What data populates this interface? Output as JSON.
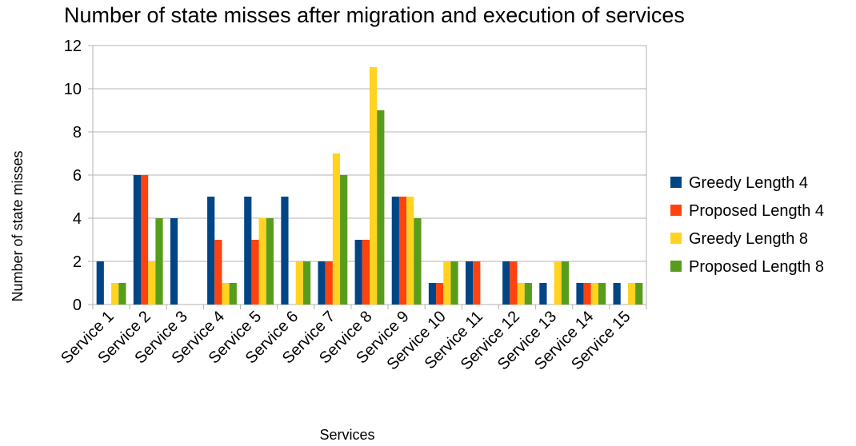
{
  "chart_data": {
    "type": "bar",
    "title": "Number of state misses after migration and execution of services",
    "xlabel": "Services",
    "ylabel": "Number of state misses",
    "ylim": [
      0,
      12
    ],
    "yticks": [
      0,
      2,
      4,
      6,
      8,
      10,
      12
    ],
    "grid": true,
    "legend_position": "right",
    "categories": [
      "Service 1",
      "Service 2",
      "Service 3",
      "Service 4",
      "Service 5",
      "Service 6",
      "Service 7",
      "Service 8",
      "Service 9",
      "Service 10",
      "Service 11",
      "Service 12",
      "Service 13",
      "Service 14",
      "Service 15"
    ],
    "series": [
      {
        "name": "Greedy Length 4",
        "color": "#004586",
        "values": [
          2,
          6,
          4,
          5,
          5,
          5,
          2,
          3,
          5,
          1,
          2,
          2,
          1,
          1,
          1
        ]
      },
      {
        "name": "Proposed Length 4",
        "color": "#ff420e",
        "values": [
          0,
          6,
          0,
          3,
          3,
          0,
          2,
          3,
          5,
          1,
          2,
          2,
          0,
          1,
          0
        ]
      },
      {
        "name": "Greedy Length 8",
        "color": "#ffd320",
        "values": [
          1,
          2,
          0,
          1,
          4,
          2,
          7,
          11,
          5,
          2,
          0,
          1,
          2,
          1,
          1
        ]
      },
      {
        "name": "Proposed Length 8",
        "color": "#579d1c",
        "values": [
          1,
          4,
          0,
          1,
          4,
          2,
          6,
          9,
          4,
          2,
          0,
          1,
          2,
          1,
          1
        ]
      }
    ]
  }
}
